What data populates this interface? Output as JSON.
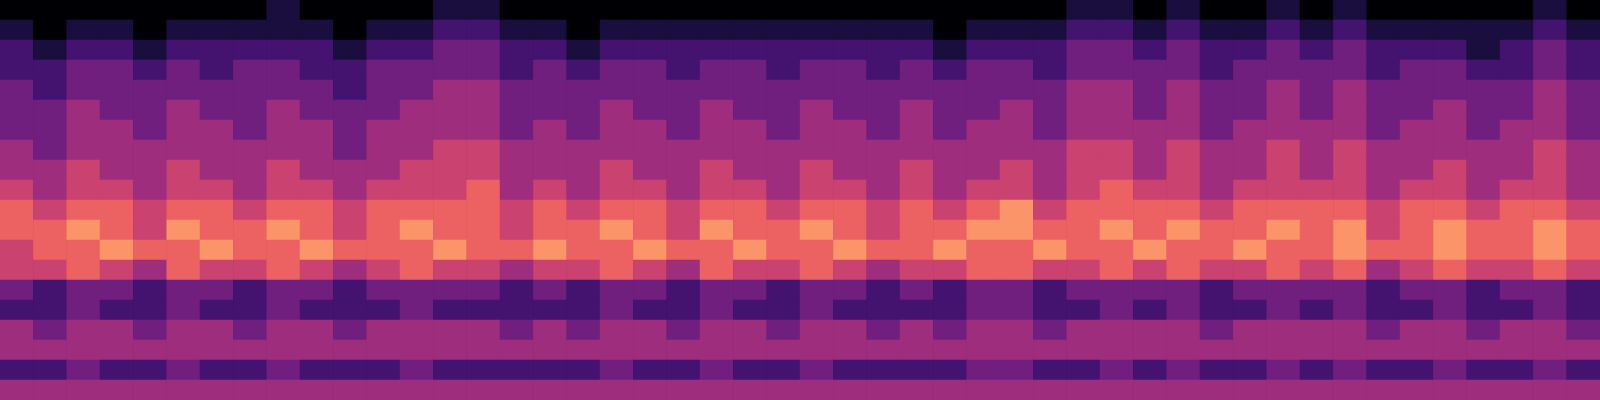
{
  "chart_data": {
    "type": "heatmap",
    "tick_labels": false,
    "zlim": [
      0,
      9
    ],
    "cells": [
      [
        0,
        0,
        0,
        0,
        0,
        0,
        0,
        0,
        1,
        0,
        0,
        0,
        0,
        1,
        1,
        0,
        0,
        0,
        0,
        0,
        0,
        0,
        0,
        0,
        0,
        0,
        0,
        0,
        0,
        0,
        0,
        0,
        1,
        1,
        0,
        1,
        0,
        0,
        1,
        0,
        1,
        0,
        0,
        0,
        0,
        0,
        1,
        0
      ],
      [
        1,
        0,
        1,
        1,
        0,
        1,
        1,
        1,
        1,
        1,
        0,
        1,
        1,
        2,
        2,
        1,
        1,
        0,
        1,
        1,
        1,
        1,
        1,
        1,
        1,
        1,
        1,
        1,
        0,
        1,
        1,
        1,
        2,
        2,
        1,
        2,
        1,
        1,
        2,
        1,
        2,
        1,
        1,
        1,
        1,
        1,
        2,
        1
      ],
      [
        2,
        1,
        2,
        2,
        1,
        2,
        2,
        2,
        2,
        2,
        1,
        2,
        2,
        3,
        3,
        2,
        2,
        1,
        2,
        2,
        2,
        2,
        2,
        2,
        2,
        2,
        2,
        2,
        1,
        2,
        2,
        2,
        3,
        3,
        2,
        3,
        2,
        2,
        3,
        2,
        3,
        2,
        2,
        2,
        1,
        2,
        3,
        2
      ],
      [
        2,
        2,
        3,
        3,
        2,
        3,
        2,
        3,
        3,
        2,
        2,
        3,
        3,
        3,
        3,
        2,
        3,
        2,
        3,
        3,
        2,
        3,
        3,
        2,
        3,
        3,
        2,
        3,
        2,
        3,
        3,
        2,
        3,
        3,
        3,
        3,
        2,
        3,
        3,
        3,
        3,
        2,
        3,
        3,
        2,
        2,
        3,
        2
      ],
      [
        3,
        2,
        3,
        3,
        3,
        3,
        3,
        3,
        3,
        3,
        2,
        3,
        3,
        4,
        4,
        3,
        3,
        3,
        3,
        3,
        3,
        3,
        3,
        3,
        3,
        3,
        3,
        3,
        3,
        3,
        3,
        3,
        4,
        4,
        3,
        4,
        3,
        3,
        4,
        3,
        4,
        3,
        3,
        3,
        3,
        3,
        4,
        3
      ],
      [
        3,
        3,
        4,
        3,
        3,
        4,
        3,
        3,
        4,
        3,
        3,
        3,
        4,
        4,
        4,
        3,
        3,
        3,
        4,
        3,
        3,
        4,
        3,
        3,
        4,
        3,
        3,
        4,
        3,
        3,
        4,
        3,
        4,
        4,
        3,
        4,
        3,
        3,
        4,
        3,
        4,
        3,
        3,
        4,
        3,
        3,
        4,
        3
      ],
      [
        3,
        3,
        4,
        4,
        3,
        4,
        4,
        3,
        4,
        4,
        3,
        4,
        4,
        4,
        4,
        3,
        4,
        3,
        4,
        4,
        3,
        4,
        4,
        3,
        4,
        4,
        3,
        4,
        3,
        4,
        4,
        3,
        4,
        4,
        4,
        4,
        3,
        4,
        4,
        4,
        4,
        3,
        4,
        4,
        3,
        4,
        4,
        3
      ],
      [
        4,
        3,
        4,
        4,
        4,
        4,
        4,
        4,
        4,
        4,
        3,
        4,
        4,
        5,
        5,
        4,
        4,
        4,
        4,
        4,
        4,
        4,
        4,
        4,
        4,
        4,
        4,
        4,
        4,
        4,
        4,
        4,
        5,
        5,
        4,
        5,
        4,
        4,
        5,
        4,
        5,
        4,
        4,
        4,
        4,
        4,
        5,
        4
      ],
      [
        4,
        4,
        5,
        4,
        4,
        5,
        4,
        4,
        5,
        4,
        4,
        4,
        5,
        5,
        5,
        4,
        4,
        4,
        5,
        4,
        4,
        5,
        4,
        4,
        5,
        4,
        4,
        5,
        4,
        4,
        5,
        4,
        5,
        5,
        4,
        5,
        4,
        4,
        5,
        4,
        5,
        4,
        4,
        5,
        4,
        4,
        5,
        4
      ],
      [
        5,
        4,
        5,
        5,
        4,
        5,
        5,
        4,
        5,
        5,
        4,
        5,
        5,
        5,
        6,
        4,
        5,
        4,
        5,
        5,
        4,
        5,
        5,
        4,
        5,
        5,
        4,
        5,
        4,
        5,
        5,
        4,
        5,
        6,
        5,
        5,
        4,
        5,
        5,
        5,
        5,
        4,
        5,
        5,
        4,
        5,
        5,
        4
      ],
      [
        6,
        5,
        6,
        6,
        5,
        6,
        6,
        5,
        6,
        6,
        5,
        6,
        6,
        6,
        6,
        5,
        6,
        5,
        6,
        6,
        5,
        6,
        6,
        5,
        6,
        6,
        5,
        6,
        5,
        6,
        7,
        5,
        6,
        6,
        6,
        6,
        5,
        6,
        6,
        6,
        6,
        5,
        6,
        6,
        5,
        6,
        6,
        5
      ],
      [
        6,
        6,
        7,
        6,
        5,
        7,
        6,
        6,
        7,
        6,
        5,
        6,
        7,
        6,
        6,
        5,
        6,
        6,
        7,
        6,
        5,
        7,
        6,
        6,
        7,
        6,
        5,
        6,
        6,
        7,
        7,
        6,
        6,
        7,
        6,
        7,
        6,
        6,
        7,
        6,
        7,
        5,
        6,
        7,
        6,
        6,
        7,
        6
      ],
      [
        5,
        6,
        6,
        7,
        6,
        6,
        7,
        6,
        6,
        7,
        6,
        6,
        6,
        7,
        6,
        6,
        7,
        6,
        6,
        7,
        6,
        6,
        7,
        6,
        6,
        7,
        6,
        6,
        7,
        6,
        6,
        7,
        6,
        6,
        7,
        6,
        6,
        7,
        6,
        6,
        7,
        6,
        6,
        7,
        6,
        6,
        7,
        6
      ],
      [
        5,
        5,
        6,
        5,
        4,
        6,
        5,
        5,
        6,
        5,
        4,
        5,
        6,
        5,
        5,
        4,
        5,
        5,
        6,
        5,
        4,
        6,
        5,
        5,
        6,
        5,
        4,
        5,
        5,
        6,
        6,
        5,
        5,
        6,
        5,
        6,
        5,
        5,
        6,
        5,
        6,
        4,
        5,
        6,
        5,
        5,
        6,
        5
      ],
      [
        3,
        2,
        3,
        3,
        2,
        3,
        3,
        2,
        3,
        3,
        2,
        3,
        3,
        3,
        3,
        2,
        3,
        2,
        3,
        3,
        2,
        3,
        3,
        2,
        3,
        3,
        2,
        3,
        2,
        3,
        3,
        2,
        3,
        3,
        3,
        3,
        2,
        3,
        3,
        3,
        3,
        2,
        3,
        3,
        2,
        3,
        3,
        2
      ],
      [
        2,
        2,
        3,
        2,
        2,
        3,
        2,
        2,
        3,
        2,
        2,
        2,
        3,
        2,
        2,
        2,
        2,
        2,
        3,
        2,
        2,
        3,
        2,
        2,
        3,
        2,
        2,
        2,
        2,
        3,
        3,
        2,
        2,
        3,
        2,
        3,
        2,
        2,
        3,
        2,
        3,
        2,
        2,
        3,
        2,
        2,
        3,
        2
      ],
      [
        4,
        3,
        4,
        4,
        3,
        4,
        4,
        3,
        4,
        4,
        3,
        4,
        4,
        4,
        4,
        3,
        4,
        3,
        4,
        4,
        3,
        4,
        4,
        3,
        4,
        4,
        3,
        4,
        3,
        4,
        4,
        3,
        4,
        4,
        4,
        4,
        3,
        4,
        4,
        4,
        4,
        3,
        4,
        4,
        3,
        4,
        4,
        3
      ],
      [
        4,
        4,
        4,
        4,
        4,
        4,
        4,
        4,
        4,
        4,
        4,
        4,
        4,
        4,
        4,
        4,
        4,
        4,
        4,
        4,
        4,
        4,
        4,
        4,
        4,
        4,
        4,
        4,
        4,
        4,
        4,
        4,
        4,
        4,
        4,
        4,
        4,
        4,
        4,
        4,
        4,
        4,
        4,
        4,
        4,
        4,
        4,
        4
      ],
      [
        2,
        2,
        3,
        2,
        2,
        3,
        2,
        2,
        3,
        2,
        2,
        2,
        3,
        2,
        2,
        2,
        2,
        2,
        3,
        2,
        2,
        3,
        2,
        2,
        3,
        2,
        2,
        2,
        2,
        3,
        3,
        2,
        2,
        3,
        2,
        3,
        2,
        2,
        3,
        2,
        3,
        2,
        2,
        3,
        2,
        2,
        3,
        2
      ],
      [
        4,
        4,
        4,
        4,
        4,
        4,
        4,
        4,
        4,
        4,
        4,
        4,
        4,
        4,
        4,
        4,
        4,
        4,
        4,
        4,
        4,
        4,
        4,
        4,
        4,
        4,
        4,
        4,
        4,
        4,
        4,
        4,
        4,
        4,
        4,
        4,
        4,
        4,
        4,
        4,
        4,
        4,
        4,
        4,
        4,
        4,
        4,
        4
      ]
    ]
  }
}
